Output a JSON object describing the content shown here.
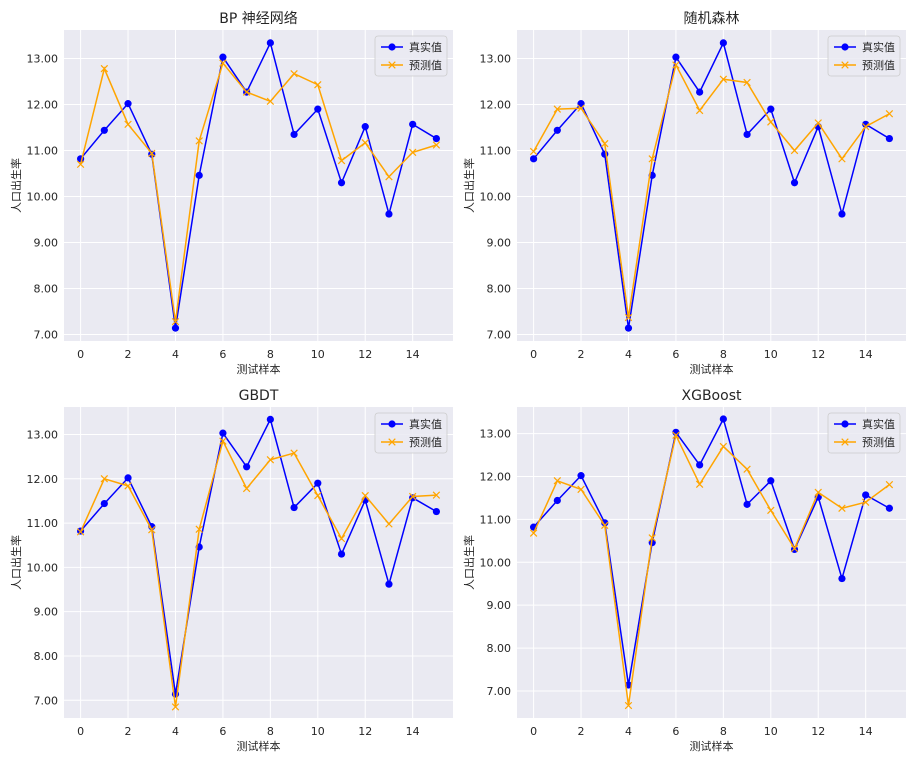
{
  "colors": {
    "actual": "#0000ff",
    "predicted": "#ffa500",
    "plot_bg": "#eaeaf2",
    "grid": "#ffffff"
  },
  "chart_data": [
    {
      "type": "line",
      "title": "BP 神经网络",
      "xlabel": "测试样本",
      "ylabel": "人口出生率",
      "xlim": [
        -0.7,
        15.7
      ],
      "ylim": [
        6.86,
        13.62
      ],
      "xticks": [
        0,
        2,
        4,
        6,
        8,
        10,
        12,
        14
      ],
      "yticks": [
        "7.00",
        "8.00",
        "9.00",
        "10.00",
        "11.00",
        "12.00",
        "13.00"
      ],
      "legend_position": "top-right",
      "grid": true,
      "x": [
        0,
        1,
        2,
        3,
        4,
        5,
        6,
        7,
        8,
        9,
        10,
        11,
        12,
        13,
        14,
        15
      ],
      "series": [
        {
          "name": "真实值",
          "marker": "circle",
          "values": [
            10.82,
            11.44,
            12.02,
            10.92,
            7.14,
            10.46,
            13.03,
            12.27,
            13.34,
            11.35,
            11.9,
            10.3,
            11.52,
            9.62,
            11.57,
            11.26
          ]
        },
        {
          "name": "预测值",
          "marker": "x",
          "values": [
            10.7,
            12.78,
            11.57,
            10.94,
            7.28,
            11.21,
            12.9,
            12.27,
            12.07,
            12.67,
            12.43,
            10.78,
            11.17,
            10.43,
            10.96,
            11.12
          ]
        }
      ]
    },
    {
      "type": "line",
      "title": "随机森林",
      "xlabel": "测试样本",
      "ylabel": "人口出生率",
      "xlim": [
        -0.7,
        15.7
      ],
      "ylim": [
        6.86,
        13.62
      ],
      "xticks": [
        0,
        2,
        4,
        6,
        8,
        10,
        12,
        14
      ],
      "yticks": [
        "7.00",
        "8.00",
        "9.00",
        "10.00",
        "11.00",
        "12.00",
        "13.00"
      ],
      "legend_position": "top-right",
      "grid": true,
      "x": [
        0,
        1,
        2,
        3,
        4,
        5,
        6,
        7,
        8,
        9,
        10,
        11,
        12,
        13,
        14,
        15
      ],
      "series": [
        {
          "name": "真实值",
          "marker": "circle",
          "values": [
            10.82,
            11.44,
            12.02,
            10.92,
            7.14,
            10.46,
            13.03,
            12.27,
            13.34,
            11.35,
            11.9,
            10.3,
            11.52,
            9.62,
            11.57,
            11.26
          ]
        },
        {
          "name": "预测值",
          "marker": "x",
          "values": [
            10.98,
            11.9,
            11.92,
            11.15,
            7.37,
            10.82,
            12.86,
            11.87,
            12.55,
            12.48,
            11.62,
            11.0,
            11.6,
            10.82,
            11.52,
            11.8
          ]
        }
      ]
    },
    {
      "type": "line",
      "title": "GBDT",
      "xlabel": "测试样本",
      "ylabel": "人口出生率",
      "xlim": [
        -0.7,
        15.7
      ],
      "ylim": [
        6.6,
        13.62
      ],
      "xticks": [
        0,
        2,
        4,
        6,
        8,
        10,
        12,
        14
      ],
      "yticks": [
        "7.00",
        "8.00",
        "9.00",
        "10.00",
        "11.00",
        "12.00",
        "13.00"
      ],
      "legend_position": "top-right",
      "grid": true,
      "x": [
        0,
        1,
        2,
        3,
        4,
        5,
        6,
        7,
        8,
        9,
        10,
        11,
        12,
        13,
        14,
        15
      ],
      "series": [
        {
          "name": "真实值",
          "marker": "circle",
          "values": [
            10.82,
            11.44,
            12.02,
            10.92,
            7.14,
            10.46,
            13.03,
            12.27,
            13.34,
            11.35,
            11.9,
            10.3,
            11.52,
            9.62,
            11.57,
            11.26
          ]
        },
        {
          "name": "预测值",
          "marker": "x",
          "values": [
            10.8,
            12.0,
            11.84,
            10.85,
            6.85,
            10.86,
            12.85,
            11.78,
            12.43,
            12.58,
            11.62,
            10.65,
            11.62,
            10.98,
            11.6,
            11.63
          ]
        }
      ]
    },
    {
      "type": "line",
      "title": "XGBoost",
      "xlabel": "测试样本",
      "ylabel": "人口出生率",
      "xlim": [
        -0.7,
        15.7
      ],
      "ylim": [
        6.37,
        13.62
      ],
      "xticks": [
        0,
        2,
        4,
        6,
        8,
        10,
        12,
        14
      ],
      "yticks": [
        "7.00",
        "8.00",
        "9.00",
        "10.00",
        "11.00",
        "12.00",
        "13.00"
      ],
      "legend_position": "top-right",
      "grid": true,
      "x": [
        0,
        1,
        2,
        3,
        4,
        5,
        6,
        7,
        8,
        9,
        10,
        11,
        12,
        13,
        14,
        15
      ],
      "series": [
        {
          "name": "真实值",
          "marker": "circle",
          "values": [
            10.82,
            11.44,
            12.02,
            10.92,
            7.14,
            10.46,
            13.03,
            12.27,
            13.34,
            11.35,
            11.9,
            10.3,
            11.52,
            9.62,
            11.57,
            11.26
          ]
        },
        {
          "name": "预测值",
          "marker": "x",
          "values": [
            10.68,
            11.9,
            11.7,
            10.86,
            6.66,
            10.57,
            12.96,
            11.82,
            12.7,
            12.17,
            11.21,
            10.32,
            11.63,
            11.26,
            11.4,
            11.81
          ]
        }
      ]
    }
  ]
}
